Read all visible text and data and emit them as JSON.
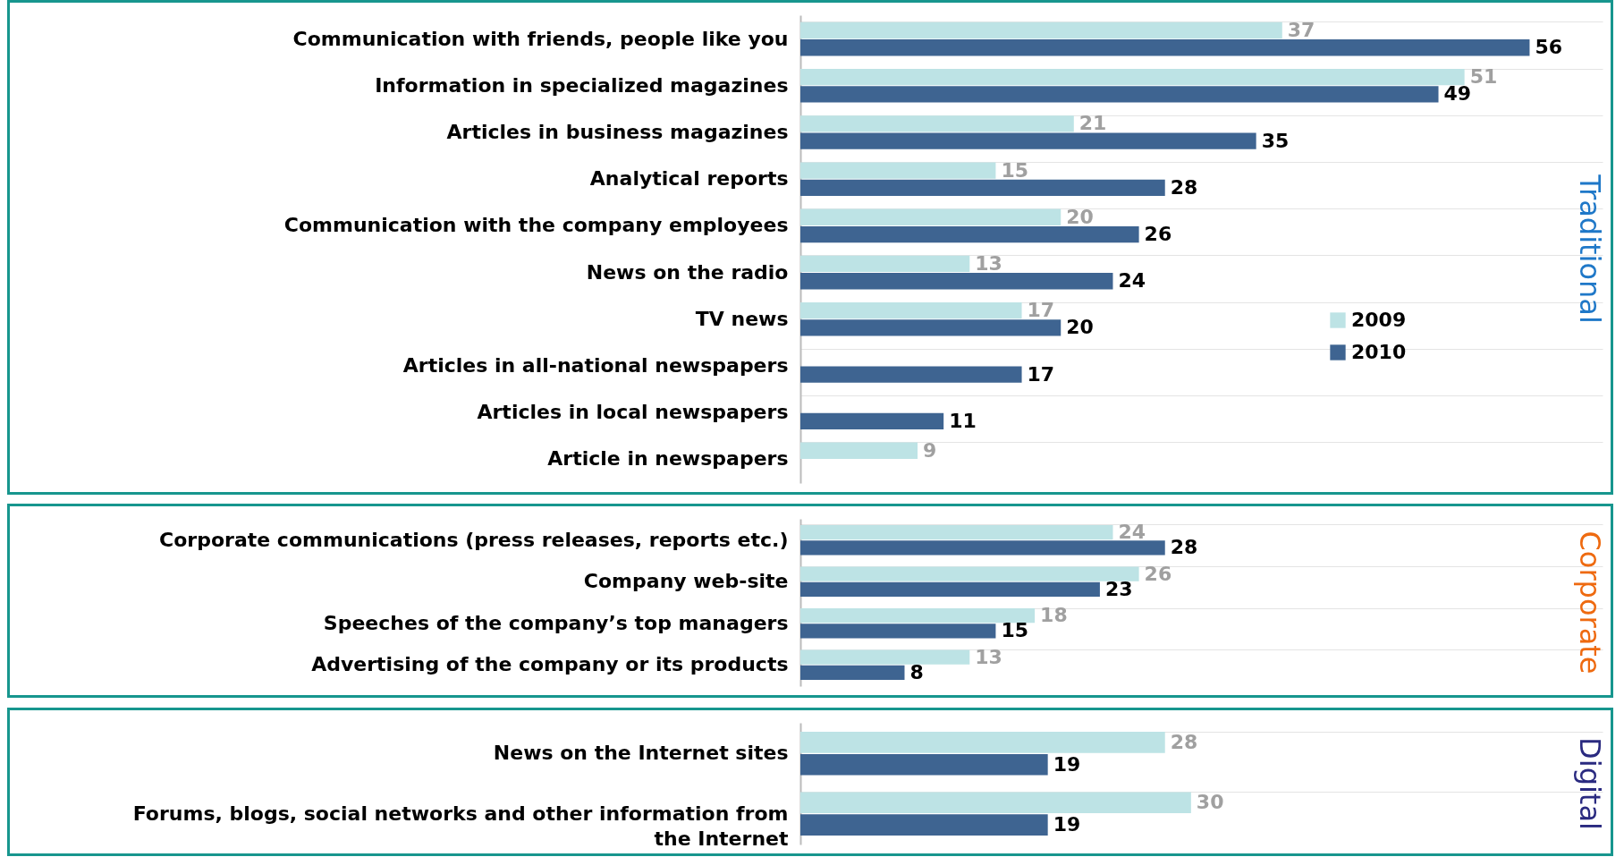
{
  "chart_data": [
    {
      "type": "bar",
      "orientation": "horizontal",
      "annotations": [
        "Traditional"
      ],
      "categories": [
        "Communication with friends, people like you",
        "Information in specialized magazines",
        "Articles in business magazines",
        "Analytical reports",
        "Communication with the company employees",
        "News on the radio",
        "TV news",
        "Articles in all-national newspapers",
        "Articles in local newspapers",
        "Article in newspapers"
      ],
      "series": [
        {
          "name": "2009",
          "color": "#bde3e5",
          "values": [
            37,
            51,
            21,
            15,
            20,
            13,
            17,
            null,
            null,
            9
          ]
        },
        {
          "name": "2010",
          "color": "#3e6491",
          "values": [
            56,
            49,
            35,
            28,
            26,
            24,
            20,
            17,
            11,
            null
          ]
        }
      ],
      "data_labels": true,
      "legend": "right"
    },
    {
      "type": "bar",
      "orientation": "horizontal",
      "annotations": [
        "Corporate"
      ],
      "categories": [
        "Corporate communications (press releases, reports etc.)",
        "Company web-site",
        "Speeches of the company’s top managers",
        "Advertising of the company or its products"
      ],
      "series": [
        {
          "color": "#bde3e5",
          "values": [
            24,
            26,
            18,
            13
          ]
        },
        {
          "color": "#3e6491",
          "values": [
            28,
            23,
            15,
            8
          ]
        }
      ],
      "data_labels": true
    },
    {
      "type": "bar",
      "orientation": "horizontal",
      "annotations": [
        "Digital"
      ],
      "categories": [
        "News on the Internet sites",
        "Forums, blogs, social networks and other information from the Internet"
      ],
      "series": [
        {
          "color": "#bde3e5",
          "values": [
            28,
            30
          ]
        },
        {
          "color": "#3e6491",
          "values": [
            19,
            19
          ]
        }
      ],
      "data_labels": true
    }
  ]
}
